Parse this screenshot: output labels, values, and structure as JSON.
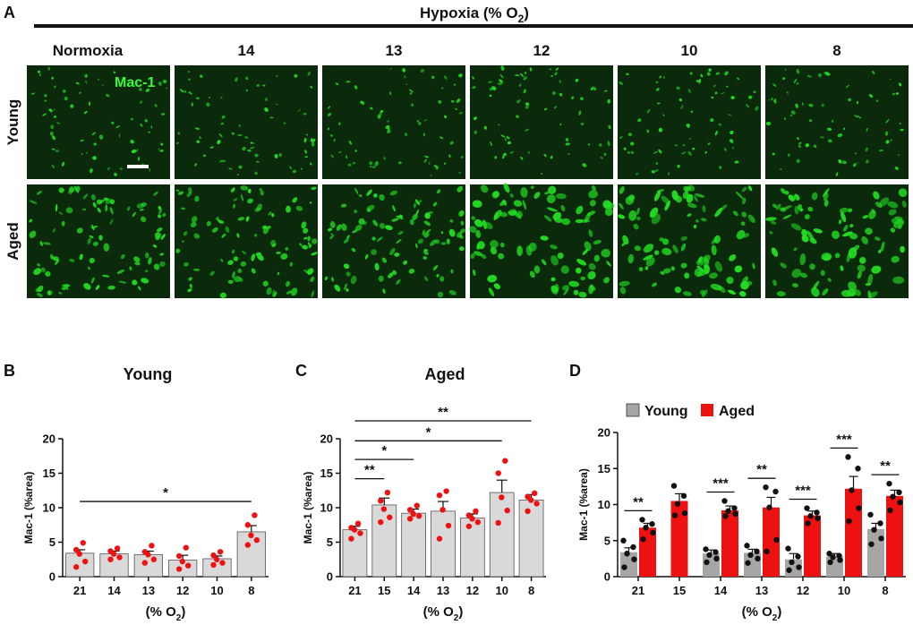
{
  "panel_a": {
    "letter": "A",
    "hypoxia_label": "Hypoxia (% O",
    "hypoxia_sub": "2",
    "hypoxia_close": ")",
    "columns": [
      "Normoxia",
      "14",
      "13",
      "12",
      "10",
      "8"
    ],
    "rows": [
      "Young",
      "Aged"
    ],
    "stain_label": "Mac-1",
    "colors": {
      "tissue": "#0b2a0b",
      "stain": "#22dd22"
    }
  },
  "chart_data": [
    {
      "id": "B",
      "letter": "B",
      "type": "bar",
      "title": "Young",
      "ylabel": "Mac-1 (%area)",
      "xlabel": "(% O",
      "xlabel_sub": "2",
      "xlabel_close": ")",
      "ylim": [
        0,
        20
      ],
      "yticks": [
        0,
        5,
        10,
        15,
        20
      ],
      "categories": [
        "21",
        "14",
        "13",
        "12",
        "10",
        "8"
      ],
      "values": [
        3.4,
        3.3,
        3.2,
        2.4,
        2.6,
        6.5
      ],
      "errors": [
        0.5,
        0.4,
        0.5,
        0.7,
        0.4,
        0.9
      ],
      "points": [
        [
          4.9,
          3.9,
          3.3,
          2.2,
          1.4
        ],
        [
          4.1,
          3.7,
          3.3,
          2.8,
          2.5
        ],
        [
          4.5,
          3.6,
          3.2,
          2.5,
          2.0
        ],
        [
          4.2,
          3.0,
          2.2,
          1.6,
          1.1
        ],
        [
          3.6,
          3.1,
          2.5,
          2.0,
          1.7
        ],
        [
          8.9,
          7.5,
          6.0,
          5.3,
          4.6
        ]
      ],
      "bar_color": "#d9d9d9",
      "point_color": "#ee1111",
      "significance": [
        {
          "from": 0,
          "to": 5,
          "level": 10.9,
          "label": "*"
        }
      ]
    },
    {
      "id": "C",
      "letter": "C",
      "type": "bar",
      "title": "Aged",
      "ylabel": "Mac-1 (%area)",
      "xlabel": "(% O",
      "xlabel_sub": "2",
      "xlabel_close": ")",
      "ylim": [
        0,
        20
      ],
      "yticks": [
        0,
        5,
        10,
        15,
        20
      ],
      "categories": [
        "21",
        "15",
        "14",
        "13",
        "12",
        "10",
        "8"
      ],
      "values": [
        6.8,
        10.4,
        9.2,
        9.5,
        8.5,
        12.2,
        11.1
      ],
      "errors": [
        0.5,
        1.0,
        0.6,
        1.4,
        0.6,
        1.8,
        0.8
      ],
      "points": [
        [
          7.7,
          7.1,
          6.8,
          6.3,
          5.5
        ],
        [
          12.2,
          11.0,
          9.8,
          8.6,
          7.9
        ],
        [
          10.3,
          9.7,
          9.1,
          8.8,
          8.4
        ],
        [
          12.4,
          11.8,
          9.7,
          7.4,
          5.5
        ],
        [
          9.5,
          8.9,
          8.4,
          7.9,
          7.3
        ],
        [
          16.8,
          15.0,
          11.5,
          9.6,
          7.8
        ],
        [
          12.1,
          11.6,
          11.1,
          10.6,
          9.5
        ]
      ],
      "bar_color": "#d9d9d9",
      "point_color": "#ee1111",
      "significance": [
        {
          "from": 0,
          "to": 1,
          "level": 14.2,
          "label": "**"
        },
        {
          "from": 0,
          "to": 2,
          "level": 17.0,
          "label": "*"
        },
        {
          "from": 0,
          "to": 5,
          "level": 19.7,
          "label": "*"
        },
        {
          "from": 0,
          "to": 6,
          "level": 22.6,
          "label": "**"
        }
      ]
    },
    {
      "id": "D",
      "letter": "D",
      "type": "bar",
      "ylabel": "Mac-1 (%area)",
      "xlabel": "(% O",
      "xlabel_sub": "2",
      "xlabel_close": ")",
      "ylim": [
        0,
        20
      ],
      "yticks": [
        0,
        5,
        10,
        15,
        20
      ],
      "categories": [
        "21",
        "15",
        "14",
        "13",
        "12",
        "10",
        "8"
      ],
      "legend": [
        "Young",
        "Aged"
      ],
      "series": [
        {
          "name": "Young",
          "color": "#a6a6a6",
          "values": [
            3.4,
            null,
            3.2,
            3.3,
            2.4,
            2.8,
            6.6
          ],
          "errors": [
            0.6,
            null,
            0.5,
            0.5,
            0.8,
            0.4,
            0.8
          ],
          "points": [
            [
              5.0,
              4.1,
              3.2,
              2.4,
              1.3
            ],
            null,
            [
              3.8,
              3.4,
              3.0,
              2.5,
              2.0
            ],
            [
              4.3,
              3.5,
              3.0,
              2.5,
              1.9
            ],
            [
              3.9,
              2.8,
              2.0,
              1.3,
              0.9
            ],
            [
              3.2,
              2.9,
              2.7,
              2.3,
              2.0
            ],
            [
              8.6,
              7.4,
              6.5,
              5.3,
              4.5
            ]
          ]
        },
        {
          "name": "Aged",
          "color": "#ee1111",
          "values": [
            6.8,
            10.5,
            9.2,
            9.6,
            8.5,
            12.2,
            11.2
          ],
          "errors": [
            0.6,
            1.0,
            0.6,
            1.4,
            0.6,
            1.7,
            0.8
          ],
          "points": [
            [
              7.9,
              7.3,
              6.8,
              6.1,
              5.2
            ],
            [
              12.6,
              11.2,
              10.1,
              8.8,
              8.5
            ],
            [
              10.5,
              9.5,
              9.1,
              8.7,
              8.4
            ],
            [
              12.4,
              11.8,
              9.6,
              5.1,
              3.5
            ],
            [
              9.5,
              8.9,
              8.4,
              8.1,
              7.4
            ],
            [
              16.6,
              15.0,
              12.0,
              9.5,
              7.7
            ],
            [
              12.9,
              11.7,
              11.1,
              10.3,
              9.2
            ]
          ]
        }
      ],
      "significance": [
        {
          "group": 0,
          "label": "**"
        },
        {
          "group": 2,
          "label": "***"
        },
        {
          "group": 3,
          "label": "**"
        },
        {
          "group": 4,
          "label": "***"
        },
        {
          "group": 5,
          "label": "***"
        },
        {
          "group": 6,
          "label": "**"
        }
      ]
    }
  ]
}
